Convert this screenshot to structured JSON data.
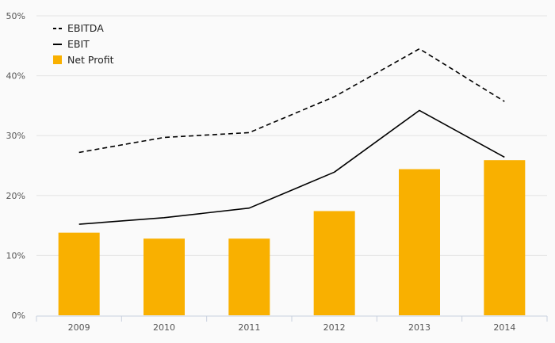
{
  "chart_data": {
    "type": "bar",
    "categories": [
      "2009",
      "2010",
      "2011",
      "2012",
      "2013",
      "2014"
    ],
    "series": [
      {
        "name": "EBITDA",
        "render": "line-dashed",
        "color": "#000000",
        "values": [
          27.2,
          29.7,
          30.5,
          36.5,
          44.5,
          35.7
        ]
      },
      {
        "name": "EBIT",
        "render": "line",
        "color": "#000000",
        "values": [
          15.2,
          16.3,
          17.9,
          23.9,
          34.2,
          26.4
        ]
      },
      {
        "name": "Net Profit",
        "render": "bar",
        "color": "#F9B000",
        "values": [
          13.8,
          12.8,
          12.8,
          17.4,
          24.4,
          25.9
        ]
      }
    ],
    "ylim": [
      0,
      50
    ],
    "yticks": [
      "0%",
      "10%",
      "20%",
      "30%",
      "40%",
      "50%"
    ],
    "grid": true,
    "legend_position": "top-left"
  }
}
